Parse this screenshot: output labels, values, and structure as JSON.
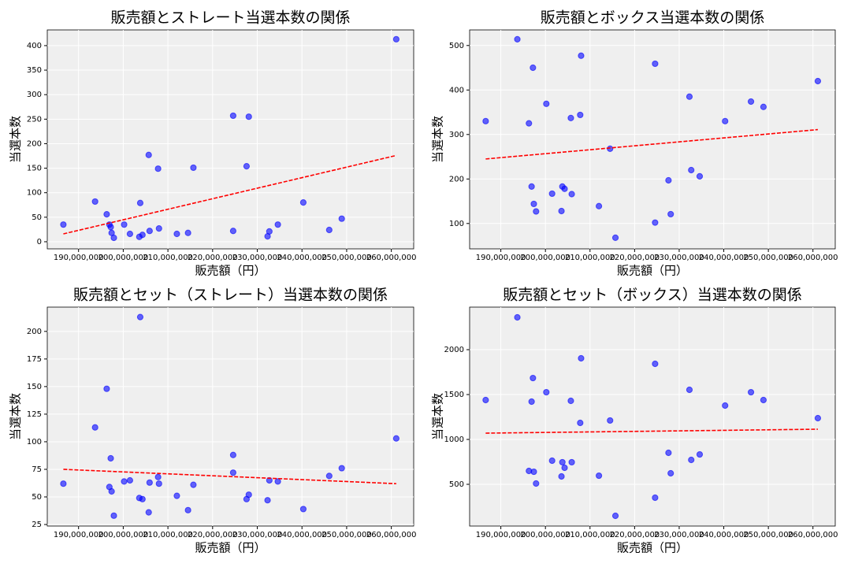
{
  "chart_data": [
    {
      "type": "scatter",
      "title": "販売額とストレート当選本数の関係",
      "x_label": "販売額（円）",
      "y_label": "当選本数",
      "x": [
        186600000,
        193700000,
        196300000,
        196900000,
        197200000,
        197400000,
        197900000,
        200200000,
        201500000,
        203600000,
        203800000,
        204300000,
        205700000,
        205900000,
        207800000,
        208000000,
        212000000,
        214500000,
        215700000,
        224600000,
        224600000,
        227600000,
        228100000,
        232300000,
        232700000,
        234600000,
        240300000,
        246100000,
        248900000,
        261100000
      ],
      "values": [
        35,
        82,
        56,
        35,
        30,
        18,
        8,
        35,
        16,
        10,
        79,
        14,
        177,
        22,
        149,
        27,
        16,
        18,
        151,
        257,
        22,
        154,
        255,
        11,
        21,
        35,
        80,
        24,
        47,
        413
      ],
      "color": "#0000ff",
      "trend_line": {
        "x": [
          186600000,
          261100000
        ],
        "values": [
          16,
          176
        ],
        "color": "#ff0000"
      },
      "xlim": [
        183000000,
        265000000
      ],
      "ylim": [
        -14.5,
        432
      ],
      "xticks": [
        {
          "value": 190000000,
          "label": "190,000,000"
        },
        {
          "value": 200000000,
          "label": "200,000,000"
        },
        {
          "value": 210000000,
          "label": "210,000,000"
        },
        {
          "value": 220000000,
          "label": "220,000,000"
        },
        {
          "value": 230000000,
          "label": "230,000,000"
        },
        {
          "value": 240000000,
          "label": "240,000,000"
        },
        {
          "value": 250000000,
          "label": "250,000,000"
        },
        {
          "value": 260000000,
          "label": "260,000,000"
        }
      ],
      "yticks": [
        0,
        50,
        100,
        150,
        200,
        250,
        300,
        350,
        400
      ],
      "grid": true
    },
    {
      "type": "scatter",
      "title": "販売額とボックス当選本数の関係",
      "x_label": "販売額（円）",
      "y_label": "当選本数",
      "x": [
        186600000,
        193700000,
        196300000,
        196900000,
        197200000,
        197400000,
        197900000,
        200200000,
        201500000,
        203600000,
        203800000,
        204300000,
        205700000,
        205900000,
        207800000,
        208000000,
        212000000,
        214500000,
        215700000,
        224600000,
        224600000,
        227600000,
        228100000,
        232300000,
        232700000,
        234600000,
        240300000,
        246100000,
        248900000,
        261100000
      ],
      "values": [
        330,
        514,
        325,
        183,
        450,
        144,
        127,
        369,
        167,
        128,
        183,
        178,
        337,
        166,
        344,
        477,
        139,
        268,
        68,
        459,
        102,
        197,
        121,
        385,
        220,
        206,
        330,
        374,
        362,
        420
      ],
      "color": "#0000ff",
      "trend_line": {
        "x": [
          186600000,
          261100000
        ],
        "values": [
          245,
          311
        ],
        "color": "#ff0000"
      },
      "xlim": [
        183000000,
        265000000
      ],
      "ylim": [
        43,
        535
      ],
      "xticks": [
        {
          "value": 190000000,
          "label": "190,000,000"
        },
        {
          "value": 200000000,
          "label": "200,000,000"
        },
        {
          "value": 210000000,
          "label": "210,000,000"
        },
        {
          "value": 220000000,
          "label": "220,000,000"
        },
        {
          "value": 230000000,
          "label": "230,000,000"
        },
        {
          "value": 240000000,
          "label": "240,000,000"
        },
        {
          "value": 250000000,
          "label": "250,000,000"
        },
        {
          "value": 260000000,
          "label": "260,000,000"
        }
      ],
      "yticks": [
        100,
        200,
        300,
        400,
        500
      ],
      "grid": true
    },
    {
      "type": "scatter",
      "title": "販売額とセット（ストレート）当選本数の関係",
      "x_label": "販売額（円）",
      "y_label": "当選本数",
      "x": [
        186600000,
        193700000,
        196300000,
        196900000,
        197200000,
        197400000,
        197900000,
        200200000,
        201500000,
        203600000,
        203800000,
        204300000,
        205700000,
        205900000,
        207800000,
        208000000,
        212000000,
        214500000,
        215700000,
        224600000,
        224600000,
        227600000,
        228100000,
        232300000,
        232700000,
        234600000,
        240300000,
        246100000,
        248900000,
        261100000
      ],
      "values": [
        62,
        113,
        148,
        59,
        85,
        55,
        33,
        64,
        65,
        49,
        213,
        48,
        36,
        63,
        68,
        62,
        51,
        38,
        61,
        88,
        72,
        48,
        52,
        47,
        65,
        64,
        39,
        69,
        76,
        103
      ],
      "color": "#0000ff",
      "trend_line": {
        "x": [
          186600000,
          261100000
        ],
        "values": [
          75,
          62
        ],
        "color": "#ff0000"
      },
      "xlim": [
        183000000,
        265000000
      ],
      "ylim": [
        23.6,
        222
      ],
      "xticks": [
        {
          "value": 190000000,
          "label": "190,000,000"
        },
        {
          "value": 200000000,
          "label": "200,000,000"
        },
        {
          "value": 210000000,
          "label": "210,000,000"
        },
        {
          "value": 220000000,
          "label": "220,000,000"
        },
        {
          "value": 230000000,
          "label": "230,000,000"
        },
        {
          "value": 240000000,
          "label": "240,000,000"
        },
        {
          "value": 250000000,
          "label": "250,000,000"
        },
        {
          "value": 260000000,
          "label": "260,000,000"
        }
      ],
      "yticks": [
        25,
        50,
        75,
        100,
        125,
        150,
        175,
        200
      ],
      "grid": true
    },
    {
      "type": "scatter",
      "title": "販売額とセット（ボックス）当選本数の関係",
      "x_label": "販売額（円）",
      "y_label": "当選本数",
      "x": [
        186600000,
        193700000,
        196300000,
        196900000,
        197200000,
        197400000,
        197900000,
        200200000,
        201500000,
        203600000,
        203800000,
        204300000,
        205700000,
        205900000,
        207800000,
        208000000,
        212000000,
        214500000,
        215700000,
        224600000,
        224600000,
        227600000,
        228100000,
        232300000,
        232700000,
        234600000,
        240300000,
        246100000,
        248900000,
        261100000
      ],
      "values": [
        1439,
        2360,
        649,
        1421,
        1684,
        640,
        509,
        1526,
        763,
        588,
        746,
        684,
        1430,
        746,
        1184,
        1904,
        596,
        1211,
        149,
        1842,
        351,
        851,
        623,
        1553,
        772,
        833,
        1377,
        1526,
        1439,
        1237
      ],
      "color": "#0000ff",
      "trend_line": {
        "x": [
          186600000,
          261100000
        ],
        "values": [
          1070,
          1114
        ],
        "color": "#ff0000"
      },
      "xlim": [
        183000000,
        265000000
      ],
      "ylim": [
        35,
        2474
      ],
      "xticks": [
        {
          "value": 190000000,
          "label": "190,000,000"
        },
        {
          "value": 200000000,
          "label": "200,000,000"
        },
        {
          "value": 210000000,
          "label": "210,000,000"
        },
        {
          "value": 220000000,
          "label": "220,000,000"
        },
        {
          "value": 230000000,
          "label": "230,000,000"
        },
        {
          "value": 240000000,
          "label": "240,000,000"
        },
        {
          "value": 250000000,
          "label": "250,000,000"
        },
        {
          "value": 260000000,
          "label": "260,000,000"
        }
      ],
      "yticks": [
        500,
        1000,
        1500,
        2000
      ],
      "grid": true
    }
  ]
}
